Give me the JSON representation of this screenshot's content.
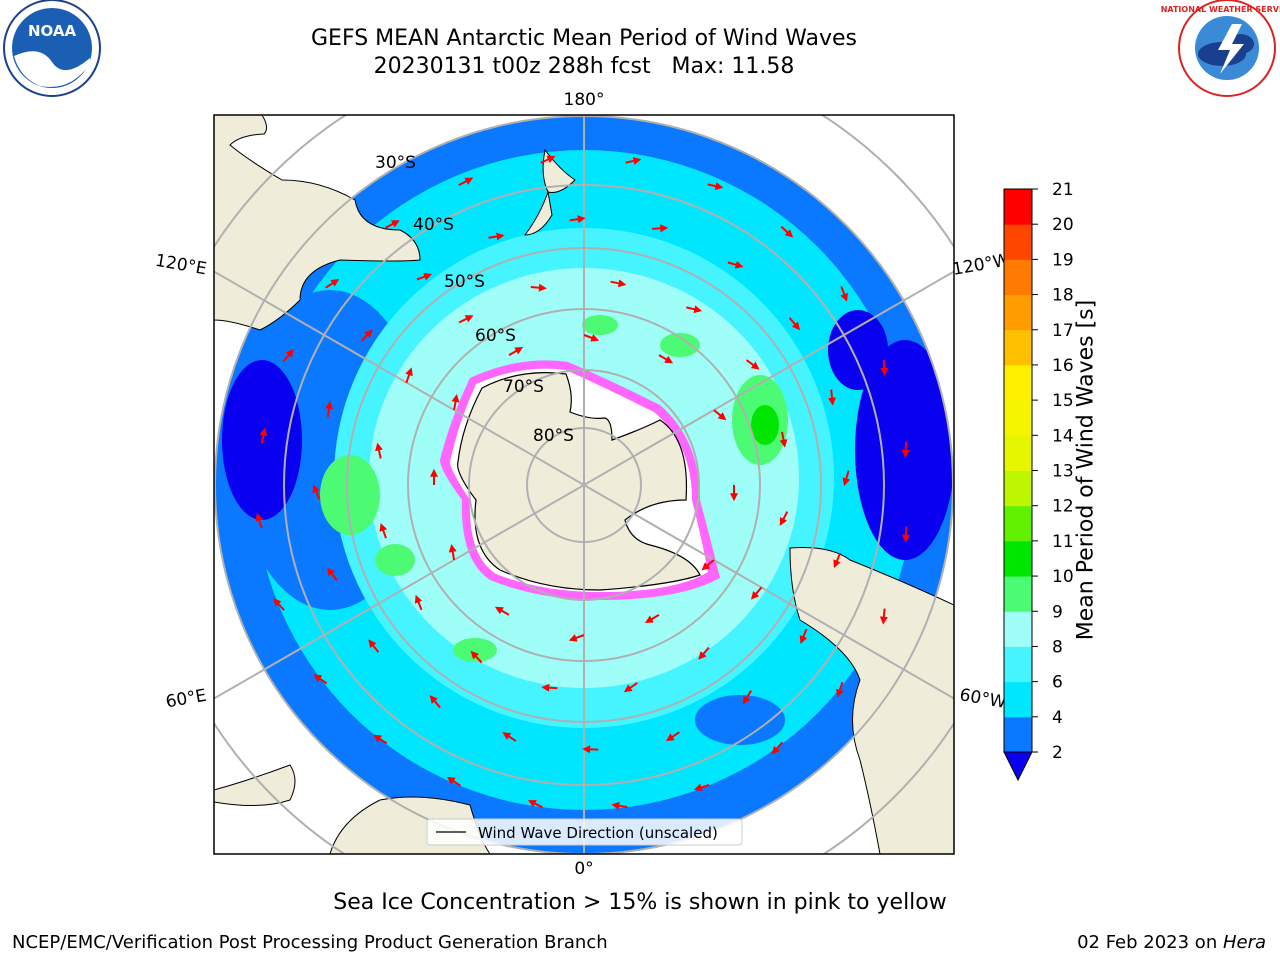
{
  "title": {
    "line1": "GEFS MEAN Antarctic Mean Period of Wind Waves",
    "line2": "20230131 t00z 288h fcst   Max: 11.58"
  },
  "logos": {
    "noaa_text": "NOAA",
    "nws_text": "NATIONAL WEATHER SERVICE"
  },
  "map": {
    "projection": "south-polar-stereographic",
    "lon_labels": {
      "top": "180°",
      "bottom": "0°",
      "upper_left": "120°E",
      "lower_left": "60°E",
      "upper_right": "120°W",
      "lower_right": "60°W"
    },
    "lat_labels": [
      "30°S",
      "40°S",
      "50°S",
      "60°S",
      "70°S",
      "80°S"
    ],
    "legend_label": "Wind Wave Direction (unscaled)"
  },
  "colorbar": {
    "label": "Mean Period of Wind Waves [s]",
    "ticks": [
      "2",
      "4",
      "6",
      "8",
      "9",
      "10",
      "11",
      "12",
      "13",
      "14",
      "15",
      "16",
      "17",
      "18",
      "19",
      "20",
      "21"
    ],
    "colors": [
      "#0a78ff",
      "#00e6ff",
      "#46f4ff",
      "#9ffff8",
      "#4dfa74",
      "#00e600",
      "#60f000",
      "#bef500",
      "#e6f500",
      "#f5f500",
      "#fff000",
      "#ffc000",
      "#ff9d00",
      "#ff7a00",
      "#ff4600",
      "#ff0000"
    ],
    "extend_color": "#0a00f0"
  },
  "caption": "Sea Ice Concentration > 15% is shown in pink to yellow",
  "footer": {
    "left": "NCEP/EMC/Verification Post Processing Product Generation Branch",
    "right_date": "02 Feb 2023 on ",
    "right_host": "Hera"
  }
}
